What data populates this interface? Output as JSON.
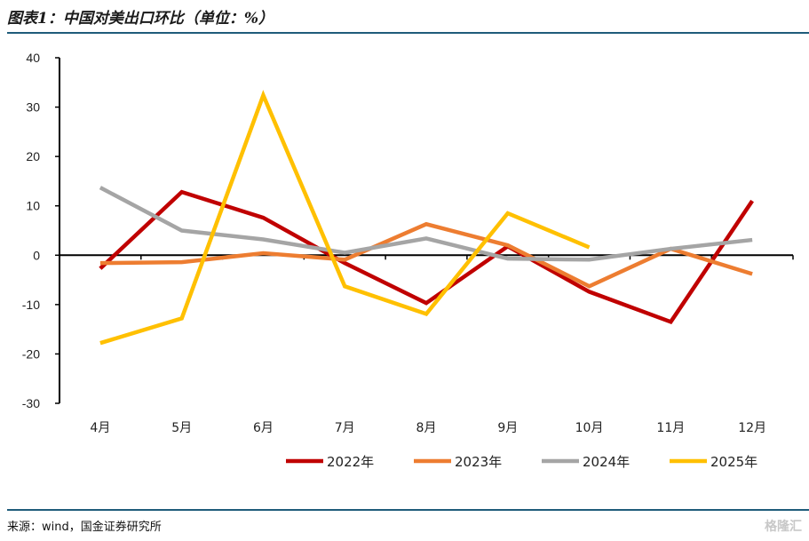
{
  "title": "图表1：中国对美出口环比（单位：%）",
  "source": "来源：wind，国金证券研究所",
  "watermark": "格隆汇",
  "chart_data": {
    "type": "line",
    "title": "",
    "xlabel": "",
    "ylabel": "",
    "ylim": [
      -30,
      40
    ],
    "yticks": [
      40,
      30,
      20,
      10,
      0,
      -10,
      -20,
      -30
    ],
    "categories": [
      "4月",
      "5月",
      "6月",
      "7月",
      "8月",
      "9月",
      "10月",
      "11月",
      "12月"
    ],
    "grid": false,
    "legend": "bottom",
    "series": [
      {
        "name": "2022年",
        "color": "#C00000",
        "values": [
          -2.7,
          12.8,
          7.6,
          -1.6,
          -9.7,
          1.8,
          -7.4,
          -13.5,
          11.0
        ]
      },
      {
        "name": "2023年",
        "color": "#ED7D31",
        "values": [
          -1.6,
          -1.4,
          0.4,
          -0.9,
          6.3,
          2.0,
          -6.3,
          1.3,
          -3.8
        ]
      },
      {
        "name": "2024年",
        "color": "#A5A5A5",
        "values": [
          13.7,
          5.0,
          3.2,
          0.5,
          3.4,
          -0.7,
          -0.9,
          1.3,
          3.1
        ]
      },
      {
        "name": "2025年",
        "color": "#FFC000",
        "values": [
          -17.8,
          -12.8,
          32.4,
          -6.3,
          -11.9,
          8.5,
          1.6,
          null,
          null
        ]
      }
    ]
  }
}
